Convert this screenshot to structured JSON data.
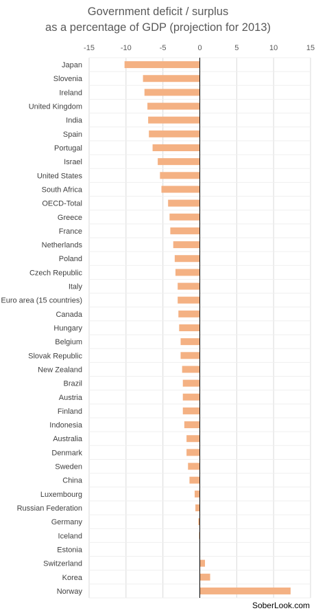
{
  "chart_data": {
    "type": "bar",
    "orientation": "horizontal",
    "title_lines": [
      "Government deficit / surplus",
      "as a percentage of GDP (projection for 2013)"
    ],
    "xlabel": "",
    "ylabel": "",
    "xlim": [
      -15,
      15
    ],
    "xticks": [
      -15,
      -10,
      -5,
      0,
      5,
      10,
      15
    ],
    "x_axis_position": "top",
    "grid": true,
    "bar_color": "#F4B183",
    "categories": [
      "Japan",
      "Slovenia",
      "Ireland",
      "United Kingdom",
      "India",
      "Spain",
      "Portugal",
      "Israel",
      "United States",
      "South Africa",
      "OECD-Total",
      "Greece",
      "France",
      "Netherlands",
      "Poland",
      "Czech Republic",
      "Italy",
      "Euro area (15 countries)",
      "Canada",
      "Hungary",
      "Belgium",
      "Slovak Republic",
      "New Zealand",
      "Brazil",
      "Austria",
      "Finland",
      "Indonesia",
      "Australia",
      "Denmark",
      "Sweden",
      "China",
      "Luxembourg",
      "Russian Federation",
      "Germany",
      "Iceland",
      "Estonia",
      "Switzerland",
      "Korea",
      "Norway"
    ],
    "values": [
      -10.2,
      -7.7,
      -7.5,
      -7.1,
      -7.0,
      -6.9,
      -6.4,
      -5.7,
      -5.4,
      -5.2,
      -4.3,
      -4.1,
      -4.0,
      -3.6,
      -3.4,
      -3.3,
      -3.0,
      -3.0,
      -2.9,
      -2.8,
      -2.6,
      -2.6,
      -2.4,
      -2.3,
      -2.3,
      -2.3,
      -2.1,
      -1.8,
      -1.8,
      -1.6,
      -1.4,
      -0.7,
      -0.6,
      -0.2,
      -0.1,
      0.0,
      0.7,
      1.4,
      12.3
    ]
  },
  "watermark": "SoberLook.com"
}
